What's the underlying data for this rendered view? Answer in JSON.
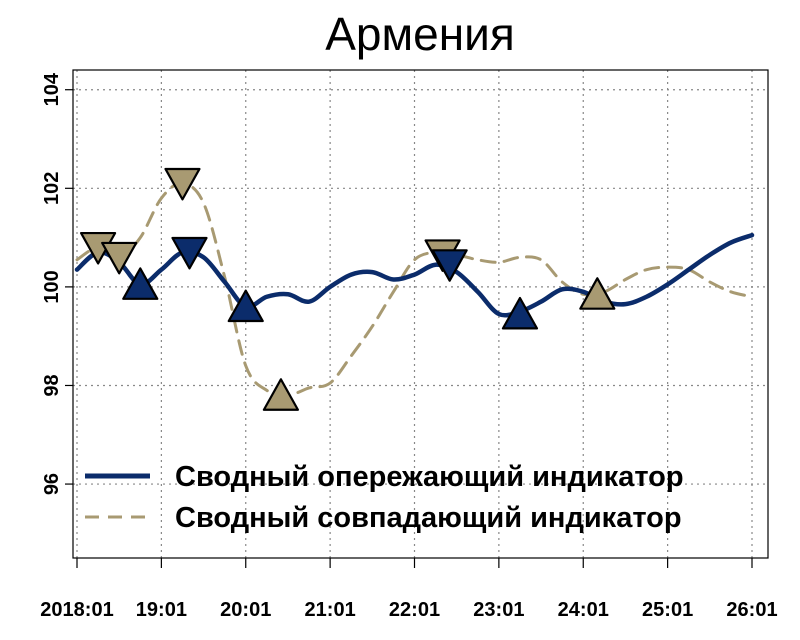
{
  "chart_data": {
    "type": "line",
    "title": "Армения",
    "xlabel": "",
    "ylabel": "",
    "x_tick_labels": [
      "2018:01",
      "19:01",
      "20:01",
      "21:01",
      "22:01",
      "23:01",
      "24:01",
      "25:01",
      "26:01"
    ],
    "y_tick_labels": [
      "96",
      "98",
      "100",
      "102",
      "104"
    ],
    "ylim": [
      94.5,
      104.4
    ],
    "xlim_months": [
      0,
      96
    ],
    "grid": true,
    "legend_position": "bottom-left",
    "series": [
      {
        "name": "Сводный опережающий индикатор",
        "color": "#0b2c6b",
        "line_style": "solid",
        "x": [
          0,
          3,
          6,
          9,
          12,
          15,
          18,
          21,
          24,
          27,
          30,
          33,
          36,
          39,
          42,
          45,
          48,
          51,
          54,
          57,
          60,
          63,
          66,
          69,
          72,
          75,
          78,
          81,
          84,
          87,
          90,
          93,
          96
        ],
        "y": [
          100.35,
          100.7,
          100.5,
          100.05,
          100.35,
          100.7,
          100.6,
          100.1,
          99.6,
          99.8,
          99.85,
          99.7,
          100.0,
          100.25,
          100.3,
          100.15,
          100.25,
          100.45,
          100.3,
          99.9,
          99.45,
          99.5,
          99.7,
          99.95,
          99.9,
          99.7,
          99.65,
          99.8,
          100.05,
          100.35,
          100.65,
          100.9,
          101.05
        ],
        "markers": [
          {
            "x": 9,
            "y": 100.05,
            "direction": "up"
          },
          {
            "x": 16,
            "y": 100.7,
            "direction": "down"
          },
          {
            "x": 24,
            "y": 99.6,
            "direction": "up"
          },
          {
            "x": 53,
            "y": 100.45,
            "direction": "down"
          },
          {
            "x": 63,
            "y": 99.45,
            "direction": "up"
          }
        ]
      },
      {
        "name": "Сводный совпадающий индикатор",
        "color": "#a89a72",
        "line_style": "dashed",
        "x": [
          0,
          3,
          6,
          9,
          12,
          15,
          18,
          21,
          24,
          27,
          30,
          33,
          36,
          39,
          42,
          45,
          48,
          51,
          54,
          57,
          60,
          63,
          66,
          69,
          72,
          75,
          78,
          81,
          84,
          87,
          90,
          93,
          96
        ],
        "y": [
          100.55,
          100.8,
          100.6,
          101.0,
          101.8,
          102.1,
          101.7,
          100.2,
          98.4,
          97.9,
          97.8,
          97.95,
          98.05,
          98.6,
          99.2,
          99.9,
          100.55,
          100.7,
          100.65,
          100.55,
          100.5,
          100.6,
          100.55,
          100.1,
          99.85,
          99.9,
          100.15,
          100.35,
          100.4,
          100.35,
          100.1,
          99.9,
          99.8
        ],
        "markers": [
          {
            "x": 3,
            "y": 100.8,
            "direction": "down"
          },
          {
            "x": 6,
            "y": 100.6,
            "direction": "down"
          },
          {
            "x": 15,
            "y": 102.1,
            "direction": "down"
          },
          {
            "x": 29,
            "y": 97.8,
            "direction": "up"
          },
          {
            "x": 52,
            "y": 100.65,
            "direction": "down"
          },
          {
            "x": 74,
            "y": 99.85,
            "direction": "up"
          }
        ]
      }
    ]
  }
}
